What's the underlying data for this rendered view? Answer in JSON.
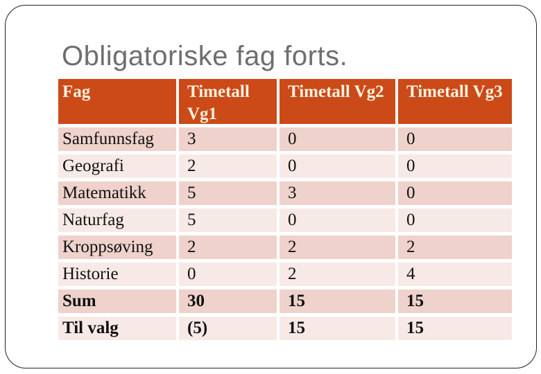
{
  "slide": {
    "title": "Obligatoriske fag forts."
  },
  "table": {
    "columns": [
      "Fag",
      "Timetall Vg1",
      "Timetall Vg2",
      "Timetall Vg3"
    ],
    "rows": [
      {
        "label": "Samfunnsfag",
        "vg1": "3",
        "vg2": "0",
        "vg3": "0"
      },
      {
        "label": "Geografi",
        "vg1": "2",
        "vg2": "0",
        "vg3": "0"
      },
      {
        "label": "Matematikk",
        "vg1": "5",
        "vg2": "3",
        "vg3": "0"
      },
      {
        "label": "Naturfag",
        "vg1": "5",
        "vg2": "0",
        "vg3": "0"
      },
      {
        "label": "Kroppsøving",
        "vg1": "2",
        "vg2": "2",
        "vg3": "2"
      },
      {
        "label": "Historie",
        "vg1": "0",
        "vg2": "2",
        "vg3": "4"
      },
      {
        "label": "Sum",
        "vg1": "30",
        "vg2": "15",
        "vg3": "15"
      },
      {
        "label": "Til valg",
        "vg1": "(5)",
        "vg2": "15",
        "vg3": "15"
      }
    ]
  },
  "colors": {
    "header_bg": "#CB4A18",
    "header_text": "#FAF2DF",
    "row_dark": "#EED2CB",
    "row_light": "#F7EAE6",
    "title_text": "#6E6E6E",
    "body_text": "#111111"
  }
}
